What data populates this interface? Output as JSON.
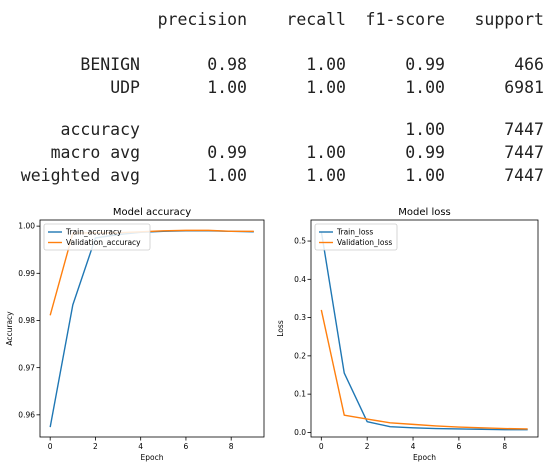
{
  "report": {
    "headers": [
      "precision",
      "recall",
      "f1-score",
      "support"
    ],
    "rows": [
      {
        "label": "BENIGN",
        "precision": "0.98",
        "recall": "1.00",
        "f1": "0.99",
        "support": "466"
      },
      {
        "label": "UDP",
        "precision": "1.00",
        "recall": "1.00",
        "f1": "1.00",
        "support": "6981"
      },
      {
        "label": "accuracy",
        "precision": "",
        "recall": "",
        "f1": "1.00",
        "support": "7447"
      },
      {
        "label": "macro avg",
        "precision": "0.99",
        "recall": "1.00",
        "f1": "0.99",
        "support": "7447"
      },
      {
        "label": "weighted avg",
        "precision": "1.00",
        "recall": "1.00",
        "f1": "1.00",
        "support": "7447"
      }
    ]
  },
  "chart_data": [
    {
      "type": "line",
      "title": "Model accuracy",
      "xlabel": "Epoch",
      "ylabel": "Accuracy",
      "xlim": [
        -0.45,
        9.45
      ],
      "ylim": [
        0.9553,
        1.0013
      ],
      "xticks": [
        0,
        2,
        4,
        6,
        8
      ],
      "xtick_labels": [
        "0",
        "2",
        "4",
        "6",
        "8"
      ],
      "yticks": [
        0.96,
        0.97,
        0.98,
        0.99,
        1.0
      ],
      "ytick_labels": [
        "0.96",
        "0.97",
        "0.98",
        "0.99",
        "1.00"
      ],
      "grid": false,
      "legend": "upper-left",
      "x": [
        0,
        1,
        2,
        3,
        4,
        5,
        6,
        7,
        8,
        9
      ],
      "series": [
        {
          "name": "Train_accuracy",
          "color": "#1f77b4",
          "values": [
            0.9574,
            0.9833,
            0.9975,
            0.9982,
            0.9987,
            0.9989,
            0.999,
            0.999,
            0.9989,
            0.9988
          ]
        },
        {
          "name": "Validation_accuracy",
          "color": "#ff7f0e",
          "values": [
            0.9811,
            0.9985,
            0.9986,
            0.9986,
            0.9988,
            0.999,
            0.9991,
            0.9991,
            0.9989,
            0.9989
          ]
        }
      ]
    },
    {
      "type": "line",
      "title": "Model loss",
      "xlabel": "Epoch",
      "ylabel": "Loss",
      "xlim": [
        -0.45,
        9.45
      ],
      "ylim": [
        -0.012,
        0.555
      ],
      "xticks": [
        0,
        2,
        4,
        6,
        8
      ],
      "xtick_labels": [
        "0",
        "2",
        "4",
        "6",
        "8"
      ],
      "yticks": [
        0.0,
        0.1,
        0.2,
        0.3,
        0.4,
        0.5
      ],
      "ytick_labels": [
        "0.0",
        "0.1",
        "0.2",
        "0.3",
        "0.4",
        "0.5"
      ],
      "grid": false,
      "legend": "upper-left",
      "x": [
        0,
        1,
        2,
        3,
        4,
        5,
        6,
        7,
        8,
        9
      ],
      "series": [
        {
          "name": "Train_loss",
          "color": "#1f77b4",
          "values": [
            0.525,
            0.155,
            0.028,
            0.015,
            0.012,
            0.01,
            0.009,
            0.008,
            0.007,
            0.007
          ]
        },
        {
          "name": "Validation_loss",
          "color": "#ff7f0e",
          "values": [
            0.32,
            0.045,
            0.035,
            0.025,
            0.021,
            0.017,
            0.014,
            0.012,
            0.01,
            0.009
          ]
        }
      ]
    }
  ]
}
